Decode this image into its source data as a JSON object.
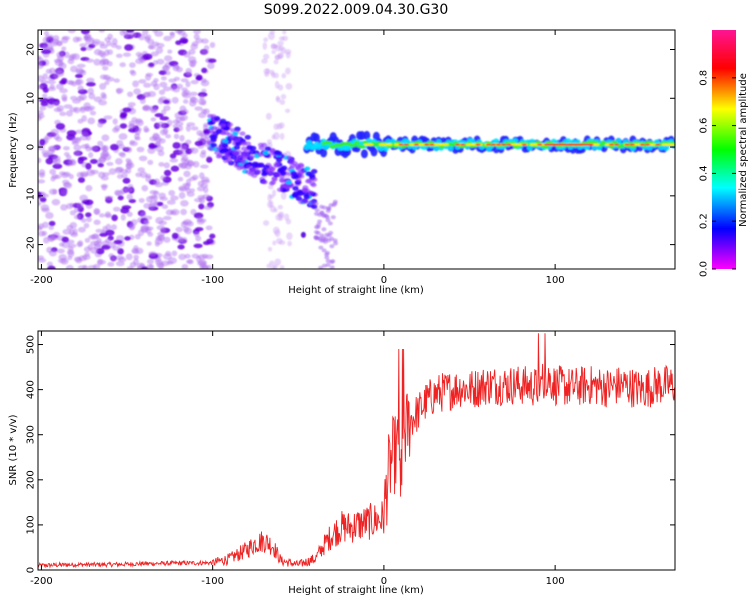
{
  "figure": {
    "title": "S099.2022.009.04.30.G30"
  },
  "chart_data": [
    {
      "type": "heatmap",
      "xlabel": "Height of straight line (km)",
      "ylabel": "Frequency (Hz)",
      "xlim": [
        -202,
        170
      ],
      "ylim": [
        -25,
        24
      ],
      "xticks": [
        -200,
        -100,
        0,
        100
      ],
      "yticks": [
        -20,
        -10,
        0,
        10,
        20
      ],
      "colorbar": {
        "label": "Normalized spectral amplitude",
        "range": [
          0,
          1
        ],
        "ticks": [
          "0.0",
          "0.2",
          "0.4",
          "0.6",
          "0.8"
        ],
        "tick_values": [
          0,
          0.2,
          0.4,
          0.6,
          0.8
        ],
        "colormap": [
          "#ff00ff",
          "#0000ff",
          "#00ffff",
          "#00ff00",
          "#ffff00",
          "#ff0000",
          "#ff1493"
        ]
      },
      "features": [
        {
          "region": [
            -202,
            -100
          ],
          "description_values": {
            "freq_spread": [
              -25,
              24
            ],
            "amplitude": [
              0.05,
              0.15
            ]
          }
        },
        {
          "region": [
            -100,
            -45
          ],
          "description_values": {
            "freq_trend_start": 3,
            "freq_trend_end": -9,
            "amplitude_max": 0.3
          }
        },
        {
          "region": [
            -45,
            170
          ],
          "description_values": {
            "freq": 0.5,
            "amplitude_max": 0.9
          }
        }
      ]
    },
    {
      "type": "line",
      "xlabel": "Height of straight line (km)",
      "ylabel": "SNR (10 * v/v)",
      "xlim": [
        -202,
        170
      ],
      "ylim": [
        0,
        530
      ],
      "xticks": [
        -200,
        -100,
        0,
        100
      ],
      "yticks": [
        0,
        100,
        200,
        300,
        400,
        500
      ],
      "series_color": "#ee2222",
      "x": [
        -202,
        -180,
        -160,
        -140,
        -120,
        -100,
        -90,
        -80,
        -75,
        -70,
        -65,
        -60,
        -50,
        -40,
        -35,
        -30,
        -25,
        -20,
        -15,
        -10,
        -5,
        0,
        2,
        5,
        8,
        10,
        12,
        15,
        20,
        25,
        30,
        35,
        40,
        45,
        50,
        55,
        60,
        70,
        80,
        90,
        95,
        100,
        110,
        120,
        130,
        140,
        150,
        160,
        170
      ],
      "y": [
        10,
        12,
        12,
        14,
        15,
        16,
        25,
        45,
        60,
        65,
        55,
        20,
        12,
        25,
        55,
        80,
        95,
        95,
        100,
        105,
        110,
        115,
        200,
        250,
        265,
        180,
        300,
        330,
        350,
        375,
        390,
        395,
        400,
        405,
        400,
        405,
        410,
        410,
        410,
        405,
        430,
        410,
        405,
        410,
        405,
        410,
        400,
        410,
        410
      ]
    }
  ]
}
